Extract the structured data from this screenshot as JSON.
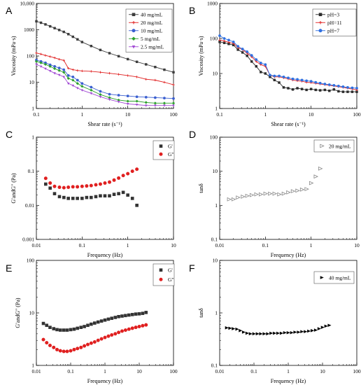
{
  "colors": {
    "mg40": "#3c3c3c",
    "mg20": "#e02020",
    "mg10": "#3a5fd0",
    "mg5": "#2ca02c",
    "mg2_5": "#a24bd4",
    "ph3": "#2b2b2b",
    "ph11": "#e02020",
    "ph7": "#2f6fe0",
    "gprime_dark": "#333333",
    "gdouble_red": "#e02020",
    "open_tri": "#888888",
    "filled_tri": "#000000"
  },
  "chart_data": [
    {
      "id": "A",
      "panel_label": "A",
      "type": "line",
      "xlabel": "Shear rate (s⁻¹)",
      "ylabel": "Viscosity (mPa·s)",
      "xscale": "log",
      "yscale": "log",
      "xlim": [
        0.1,
        100
      ],
      "ylim": [
        1,
        10000
      ],
      "xticks": [
        0.1,
        1,
        10,
        100
      ],
      "xtick_labels": [
        "0.1",
        "1",
        "10",
        "100"
      ],
      "yticks": [
        1,
        10,
        100,
        1000,
        10000
      ],
      "ytick_labels": [
        "1",
        "10",
        "100",
        "1000",
        "10,000"
      ],
      "legend": "top-right",
      "x": [
        0.1,
        0.126,
        0.158,
        0.2,
        0.251,
        0.316,
        0.398,
        0.501,
        0.631,
        0.794,
        1.0,
        1.58,
        2.51,
        3.98,
        6.31,
        10.0,
        15.8,
        25.1,
        39.8,
        63.1,
        100
      ],
      "series": [
        {
          "name": "40 mg/mL",
          "color_key": "mg40",
          "marker": "square",
          "values": [
            2100,
            1850,
            1600,
            1350,
            1150,
            980,
            830,
            680,
            540,
            430,
            340,
            240,
            170,
            128,
            98,
            76,
            60,
            48,
            38,
            30,
            24
          ]
        },
        {
          "name": "20 mg/mL",
          "color_key": "mg20",
          "marker": "plus",
          "values": [
            130,
            118,
            105,
            95,
            85,
            75,
            68,
            34,
            30,
            28,
            27,
            26,
            24,
            22,
            20,
            18,
            16,
            13,
            12,
            10,
            8
          ]
        },
        {
          "name": "10 mg/mL",
          "color_key": "mg10",
          "marker": "circle",
          "values": [
            70,
            62,
            55,
            46,
            40,
            35,
            30,
            18,
            16,
            12,
            9,
            6.5,
            4.5,
            3.5,
            3.2,
            3.0,
            2.8,
            2.7,
            2.6,
            2.5,
            2.4
          ]
        },
        {
          "name": "5 mg/mL",
          "color_key": "mg5",
          "marker": "diamond",
          "values": [
            62,
            55,
            48,
            40,
            33,
            28,
            24,
            14,
            12,
            9,
            7,
            5,
            3.4,
            2.6,
            2.1,
            1.9,
            1.9,
            1.7,
            1.6,
            1.6,
            1.6
          ]
        },
        {
          "name": "2.5 mg/mL",
          "color_key": "mg2_5",
          "marker": "triangle-down",
          "values": [
            48,
            40,
            33,
            27,
            22,
            19,
            16,
            9,
            7.5,
            6,
            5,
            3.8,
            2.8,
            2.2,
            1.8,
            1.5,
            1.4,
            1.3,
            1.3,
            1.3,
            1.3
          ]
        }
      ]
    },
    {
      "id": "B",
      "panel_label": "B",
      "type": "line",
      "xlabel": "Shear rate (s⁻¹)",
      "ylabel": "Viscosity (mPa·s)",
      "xscale": "log",
      "yscale": "log",
      "xlim": [
        0.1,
        100
      ],
      "ylim": [
        1,
        1000
      ],
      "xticks": [
        0.1,
        1,
        10,
        100
      ],
      "xtick_labels": [
        "0.1",
        "1",
        "10",
        "100"
      ],
      "yticks": [
        1,
        10,
        100,
        1000
      ],
      "ytick_labels": [
        "1",
        "10",
        "100",
        "1000"
      ],
      "legend": "top-right",
      "x": [
        0.1,
        0.126,
        0.158,
        0.2,
        0.251,
        0.316,
        0.398,
        0.501,
        0.631,
        0.794,
        1.0,
        1.26,
        1.58,
        2.0,
        2.51,
        3.16,
        3.98,
        5.01,
        6.31,
        7.94,
        10.0,
        12.6,
        15.8,
        20.0,
        25.1,
        31.6,
        39.8,
        50.1,
        63.1,
        79.4,
        100
      ],
      "series": [
        {
          "name": "pH=3",
          "color_key": "ph3",
          "marker": "square",
          "values": [
            80,
            75,
            70,
            65,
            48,
            40,
            32,
            22,
            16,
            11,
            10,
            8,
            6.5,
            5.5,
            4,
            3.8,
            3.5,
            3.8,
            3.6,
            3.4,
            3.6,
            3.4,
            3.3,
            3.4,
            3.2,
            3.5,
            3.1,
            3.0,
            3.0,
            3.0,
            3.0
          ]
        },
        {
          "name": "pH=11",
          "color_key": "ph11",
          "marker": "plus",
          "values": [
            90,
            85,
            78,
            72,
            55,
            48,
            38,
            30,
            22,
            18,
            16,
            9,
            8,
            8,
            7.5,
            7,
            6.5,
            6.2,
            6,
            5.6,
            5.5,
            5.2,
            5.0,
            4.8,
            4.6,
            4.4,
            4.2,
            4.0,
            3.8,
            3.6,
            3.4
          ]
        },
        {
          "name": "pH=7",
          "color_key": "ph7",
          "marker": "circle",
          "values": [
            120,
            100,
            90,
            80,
            60,
            50,
            42,
            33,
            25,
            20,
            18,
            9,
            8.5,
            8.5,
            8,
            7.5,
            7,
            6.8,
            6.5,
            6.2,
            6,
            5.6,
            5.3,
            5.0,
            4.8,
            4.6,
            4.4,
            4.2,
            4.0,
            3.9,
            3.8
          ]
        }
      ]
    },
    {
      "id": "C",
      "panel_label": "C",
      "type": "scatter",
      "xlabel": "Frequency (Hz)",
      "ylabel": "G'andG\" (Pa)",
      "xscale": "log",
      "yscale": "log",
      "xlim": [
        0.01,
        10
      ],
      "ylim": [
        0.001,
        1
      ],
      "xticks": [
        0.01,
        0.1,
        1,
        10
      ],
      "xtick_labels": [
        "0.01",
        "0.1",
        "1",
        "10"
      ],
      "yticks": [
        0.001,
        0.01,
        0.1,
        1
      ],
      "ytick_labels": [
        "0.001",
        "0.01",
        "0.1",
        "1"
      ],
      "legend": "top-right",
      "x": [
        0.016,
        0.02,
        0.025,
        0.032,
        0.04,
        0.05,
        0.063,
        0.079,
        0.1,
        0.126,
        0.158,
        0.2,
        0.251,
        0.316,
        0.398,
        0.501,
        0.631,
        0.794,
        1.0,
        1.26,
        1.58
      ],
      "series": [
        {
          "name": "G'",
          "color_key": "gprime_dark",
          "marker": "square",
          "values": [
            0.042,
            0.032,
            0.022,
            0.018,
            0.017,
            0.016,
            0.016,
            0.016,
            0.016,
            0.017,
            0.017,
            0.018,
            0.019,
            0.019,
            0.019,
            0.021,
            0.022,
            0.024,
            0.02,
            0.016,
            0.01
          ]
        },
        {
          "name": "G\"",
          "color_key": "gdouble_red",
          "marker": "circle",
          "values": [
            0.062,
            0.045,
            0.036,
            0.034,
            0.033,
            0.034,
            0.035,
            0.035,
            0.036,
            0.037,
            0.038,
            0.04,
            0.042,
            0.045,
            0.048,
            0.055,
            0.063,
            0.075,
            0.085,
            0.1,
            0.115
          ]
        }
      ]
    },
    {
      "id": "D",
      "panel_label": "D",
      "type": "scatter",
      "xlabel": "Frequency (Hz)",
      "ylabel": "tanδ",
      "xscale": "log",
      "yscale": "log",
      "xlim": [
        0.01,
        10
      ],
      "ylim": [
        0.1,
        100
      ],
      "xticks": [
        0.01,
        0.1,
        1,
        10
      ],
      "xtick_labels": [
        "0.01",
        "0.1",
        "1",
        "10"
      ],
      "yticks": [
        0.1,
        1,
        10,
        100
      ],
      "ytick_labels": [
        "0.1",
        "1",
        "10",
        "100"
      ],
      "legend": "top-right",
      "x": [
        0.016,
        0.02,
        0.025,
        0.032,
        0.04,
        0.05,
        0.063,
        0.079,
        0.1,
        0.126,
        0.158,
        0.2,
        0.251,
        0.316,
        0.398,
        0.501,
        0.631,
        0.794,
        1.0,
        1.26,
        1.58
      ],
      "series": [
        {
          "name": "20 mg/mL",
          "color_key": "open_tri",
          "marker": "triangle-right-open",
          "values": [
            1.5,
            1.5,
            1.7,
            1.8,
            1.9,
            2.0,
            2.1,
            2.1,
            2.2,
            2.2,
            2.2,
            2.1,
            2.2,
            2.4,
            2.6,
            2.7,
            2.9,
            3.0,
            4.5,
            7.0,
            12
          ]
        }
      ]
    },
    {
      "id": "E",
      "panel_label": "E",
      "type": "scatter",
      "xlabel": "Frequency (Hz)",
      "ylabel": "G'andG\" (Pa)",
      "xscale": "log",
      "yscale": "log",
      "xlim": [
        0.01,
        100
      ],
      "ylim": [
        1,
        100
      ],
      "xticks": [
        0.01,
        0.1,
        1,
        10,
        100
      ],
      "xtick_labels": [
        "0.01",
        "0.1",
        "1",
        "10",
        "100"
      ],
      "yticks": [
        1,
        10,
        100
      ],
      "ytick_labels": [
        "1",
        "10",
        "100"
      ],
      "legend": "top-right",
      "x": [
        0.016,
        0.02,
        0.025,
        0.032,
        0.04,
        0.05,
        0.063,
        0.079,
        0.1,
        0.126,
        0.158,
        0.2,
        0.251,
        0.316,
        0.398,
        0.501,
        0.631,
        0.794,
        1.0,
        1.26,
        1.58,
        2.0,
        2.51,
        3.16,
        3.98,
        5.01,
        6.31,
        7.94,
        10.0,
        12.6,
        15.8
      ],
      "series": [
        {
          "name": "G'",
          "color_key": "gprime_dark",
          "marker": "square",
          "values": [
            6.3,
            5.8,
            5.3,
            5.0,
            4.8,
            4.7,
            4.7,
            4.7,
            4.8,
            4.9,
            5.1,
            5.3,
            5.5,
            5.8,
            6.1,
            6.4,
            6.7,
            7.0,
            7.3,
            7.6,
            7.9,
            8.2,
            8.5,
            8.7,
            8.9,
            9.1,
            9.3,
            9.5,
            9.6,
            9.8,
            10.2
          ]
        },
        {
          "name": "G\"",
          "color_key": "gdouble_red",
          "marker": "circle",
          "values": [
            3.1,
            2.7,
            2.4,
            2.2,
            2.0,
            1.9,
            1.85,
            1.85,
            1.9,
            2.0,
            2.1,
            2.2,
            2.35,
            2.5,
            2.65,
            2.8,
            3.0,
            3.2,
            3.4,
            3.6,
            3.8,
            4.0,
            4.25,
            4.5,
            4.7,
            4.9,
            5.1,
            5.3,
            5.5,
            5.7,
            5.9
          ]
        }
      ]
    },
    {
      "id": "F",
      "panel_label": "F",
      "type": "scatter",
      "xlabel": "Frequency (Hz)",
      "ylabel": "tanδ",
      "xscale": "log",
      "yscale": "log",
      "xlim": [
        0.01,
        100
      ],
      "ylim": [
        0.1,
        10
      ],
      "xticks": [
        0.01,
        0.1,
        1,
        10,
        100
      ],
      "xtick_labels": [
        "0.01",
        "0.1",
        "1",
        "10",
        "100"
      ],
      "yticks": [
        0.1,
        1,
        10
      ],
      "ytick_labels": [
        "0.1",
        "1",
        "10"
      ],
      "legend": "top-right",
      "x": [
        0.016,
        0.02,
        0.025,
        0.032,
        0.04,
        0.05,
        0.063,
        0.079,
        0.1,
        0.126,
        0.158,
        0.2,
        0.251,
        0.316,
        0.398,
        0.501,
        0.631,
        0.794,
        1.0,
        1.26,
        1.58,
        2.0,
        2.51,
        3.16,
        3.98,
        5.01,
        6.31,
        7.94,
        10.0,
        12.6,
        15.8
      ],
      "series": [
        {
          "name": "40 mg/mL",
          "color_key": "filled_tri",
          "marker": "triangle-right",
          "values": [
            0.52,
            0.51,
            0.5,
            0.49,
            0.46,
            0.43,
            0.41,
            0.4,
            0.4,
            0.4,
            0.4,
            0.4,
            0.4,
            0.41,
            0.41,
            0.41,
            0.41,
            0.42,
            0.42,
            0.42,
            0.43,
            0.43,
            0.44,
            0.44,
            0.45,
            0.46,
            0.47,
            0.5,
            0.53,
            0.56,
            0.58
          ]
        }
      ]
    }
  ]
}
